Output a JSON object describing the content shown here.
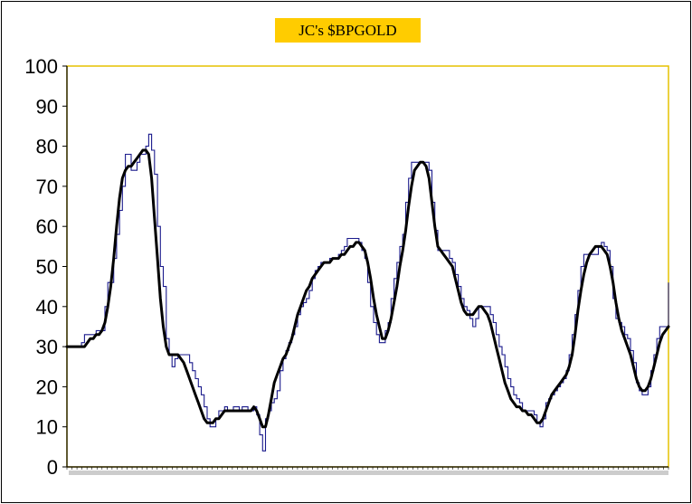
{
  "chart_data": {
    "type": "line",
    "title": "JC's $BPGOLD",
    "ylim": [
      0,
      100
    ],
    "y_ticks": [
      "0",
      "10",
      "20",
      "30",
      "40",
      "50",
      "60",
      "70",
      "80",
      "90",
      "100"
    ],
    "grid": false,
    "legend": "none",
    "colors": {
      "title_bg": "#ffcc00",
      "plot_border": "#e6c200",
      "raw_line": "#1a1a8c",
      "smooth_line": "#000000"
    },
    "x_tick_note": "dense unreadable date labels along x-axis",
    "series": [
      {
        "values": [
          30,
          30,
          30,
          30,
          30,
          31,
          33,
          33,
          33,
          33,
          34,
          34,
          34,
          40,
          46,
          46,
          52,
          58,
          64,
          70,
          78,
          78,
          74,
          74,
          76,
          78,
          78,
          80,
          83,
          79,
          73,
          60,
          50,
          45,
          32,
          28,
          25,
          27,
          28,
          28,
          28,
          28,
          26,
          24,
          22,
          20,
          18,
          15,
          12,
          10,
          10,
          12,
          14,
          14,
          15,
          14,
          14,
          15,
          15,
          14,
          15,
          15,
          14,
          14,
          15,
          13,
          8,
          4,
          12,
          14,
          16,
          17,
          19,
          24,
          27,
          29,
          31,
          33,
          35,
          38,
          40,
          41,
          42,
          44,
          47,
          49,
          50,
          51,
          51,
          51,
          52,
          52,
          52,
          53,
          54,
          55,
          57,
          57,
          57,
          57,
          56,
          54,
          52,
          46,
          40,
          36,
          33,
          31,
          31,
          34,
          36,
          42,
          47,
          51,
          55,
          58,
          66,
          72,
          76,
          76,
          76,
          76,
          76,
          76,
          74,
          66,
          59,
          54,
          54,
          54,
          54,
          52,
          51,
          48,
          45,
          42,
          40,
          39,
          37,
          35,
          37,
          40,
          40,
          40,
          40,
          38,
          36,
          33,
          30,
          28,
          25,
          22,
          20,
          18,
          17,
          16,
          14,
          14,
          14,
          14,
          13,
          11,
          10,
          12,
          16,
          17,
          18,
          19,
          20,
          21,
          22,
          24,
          28,
          33,
          38,
          44,
          50,
          53,
          53,
          53,
          53,
          53,
          55,
          56,
          55,
          54,
          50,
          42,
          37,
          36,
          35,
          33,
          32,
          29,
          26,
          21,
          19,
          18,
          18,
          20,
          24,
          28,
          32,
          35,
          35,
          35,
          46
        ],
        "color": "#1a1a8c"
      },
      {
        "values": [
          30,
          30,
          30,
          30,
          30,
          30,
          30,
          31,
          32,
          32,
          33,
          33,
          34,
          36,
          40,
          45,
          52,
          60,
          67,
          72,
          74,
          75,
          75,
          76,
          77,
          78,
          79,
          79,
          78,
          72,
          62,
          52,
          42,
          35,
          30,
          28,
          28,
          28,
          28,
          27,
          26,
          24,
          22,
          20,
          18,
          16,
          14,
          12,
          11,
          11,
          11,
          12,
          12,
          13,
          14,
          14,
          14,
          14,
          14,
          14,
          14,
          14,
          14,
          14,
          15,
          14,
          12,
          10,
          10,
          13,
          17,
          21,
          23,
          25,
          27,
          28,
          30,
          32,
          35,
          38,
          40,
          42,
          44,
          45,
          47,
          48,
          49,
          50,
          51,
          51,
          51,
          52,
          52,
          52,
          53,
          53,
          54,
          55,
          55,
          56,
          56,
          55,
          54,
          51,
          47,
          42,
          38,
          35,
          32,
          32,
          34,
          37,
          41,
          45,
          50,
          54,
          59,
          65,
          70,
          74,
          75,
          76,
          76,
          75,
          72,
          66,
          60,
          55,
          54,
          53,
          52,
          51,
          50,
          47,
          44,
          41,
          39,
          38,
          38,
          38,
          39,
          40,
          40,
          39,
          38,
          36,
          33,
          30,
          27,
          24,
          21,
          19,
          17,
          16,
          15,
          15,
          14,
          14,
          13,
          13,
          12,
          11,
          11,
          12,
          14,
          16,
          18,
          19,
          20,
          21,
          22,
          23,
          25,
          28,
          33,
          39,
          44,
          48,
          51,
          53,
          54,
          55,
          55,
          55,
          54,
          53,
          50,
          46,
          41,
          37,
          34,
          32,
          30,
          28,
          25,
          22,
          20,
          19,
          19,
          20,
          22,
          25,
          28,
          31,
          33,
          34,
          35
        ],
        "color": "#000000"
      }
    ]
  }
}
